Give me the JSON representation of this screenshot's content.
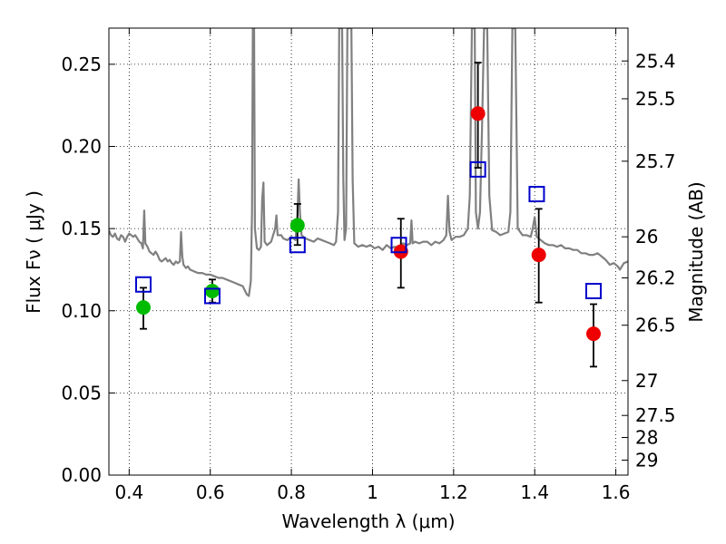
{
  "chart_data": {
    "type": "scatter",
    "title": "",
    "xlabel": "Wavelength  λ (μm)",
    "ylabel": "Flux  Fν  ( μJy )",
    "y2label": "Magnitude (AB)",
    "xlim": [
      0.35,
      1.63
    ],
    "ylim": [
      0.0,
      0.272
    ],
    "grid": true,
    "x_ticks": [
      0.4,
      0.6,
      0.8,
      1.0,
      1.2,
      1.4,
      1.6
    ],
    "x_tick_labels": [
      "0.4",
      "0.6",
      "0.8",
      "1",
      "1.2",
      "1.4",
      "1.6"
    ],
    "y_ticks": [
      0.0,
      0.05,
      0.1,
      0.15,
      0.2,
      0.25
    ],
    "y_tick_labels": [
      "0.00",
      "0.05",
      "0.10",
      "0.15",
      "0.20",
      "0.25"
    ],
    "y2_ticks": [
      {
        "label": "25.4",
        "flux": 0.252
      },
      {
        "label": "25.5",
        "flux": 0.229
      },
      {
        "label": "25.7",
        "flux": 0.191
      },
      {
        "label": "26",
        "flux": 0.145
      },
      {
        "label": "26.2",
        "flux": 0.12
      },
      {
        "label": "26.5",
        "flux": 0.0912
      },
      {
        "label": "27",
        "flux": 0.0575
      },
      {
        "label": "27.5",
        "flux": 0.0363
      },
      {
        "label": "28",
        "flux": 0.0229
      },
      {
        "label": "29",
        "flux": 0.0091
      }
    ],
    "series": [
      {
        "color": "#808080",
        "style": "line",
        "points": [
          [
            0.35,
            0.149
          ],
          [
            0.355,
            0.146
          ],
          [
            0.36,
            0.145
          ],
          [
            0.365,
            0.147
          ],
          [
            0.37,
            0.144
          ],
          [
            0.375,
            0.143
          ],
          [
            0.38,
            0.146
          ],
          [
            0.385,
            0.145
          ],
          [
            0.39,
            0.142
          ],
          [
            0.395,
            0.145
          ],
          [
            0.4,
            0.147
          ],
          [
            0.405,
            0.146
          ],
          [
            0.41,
            0.145
          ],
          [
            0.415,
            0.146
          ],
          [
            0.42,
            0.144
          ],
          [
            0.425,
            0.142
          ],
          [
            0.43,
            0.141
          ],
          [
            0.434,
            0.138
          ],
          [
            0.437,
            0.161
          ],
          [
            0.44,
            0.141
          ],
          [
            0.445,
            0.139
          ],
          [
            0.45,
            0.136
          ],
          [
            0.455,
            0.135
          ],
          [
            0.46,
            0.134
          ],
          [
            0.465,
            0.136
          ],
          [
            0.47,
            0.134
          ],
          [
            0.475,
            0.131
          ],
          [
            0.48,
            0.13
          ],
          [
            0.485,
            0.131
          ],
          [
            0.49,
            0.132
          ],
          [
            0.495,
            0.13
          ],
          [
            0.5,
            0.131
          ],
          [
            0.505,
            0.129
          ],
          [
            0.51,
            0.128
          ],
          [
            0.515,
            0.13
          ],
          [
            0.52,
            0.129
          ],
          [
            0.525,
            0.13
          ],
          [
            0.528,
            0.148
          ],
          [
            0.531,
            0.133
          ],
          [
            0.534,
            0.128
          ],
          [
            0.54,
            0.126
          ],
          [
            0.545,
            0.127
          ],
          [
            0.55,
            0.125
          ],
          [
            0.56,
            0.124
          ],
          [
            0.57,
            0.123
          ],
          [
            0.58,
            0.123
          ],
          [
            0.59,
            0.122
          ],
          [
            0.6,
            0.122
          ],
          [
            0.61,
            0.121
          ],
          [
            0.62,
            0.12
          ],
          [
            0.63,
            0.12
          ],
          [
            0.64,
            0.119
          ],
          [
            0.65,
            0.118
          ],
          [
            0.66,
            0.117
          ],
          [
            0.67,
            0.116
          ],
          [
            0.68,
            0.115
          ],
          [
            0.69,
            0.11
          ],
          [
            0.695,
            0.109
          ],
          [
            0.7,
            0.118
          ],
          [
            0.703,
            0.16
          ],
          [
            0.705,
            0.272
          ],
          [
            0.708,
            0.272
          ],
          [
            0.71,
            0.15
          ],
          [
            0.715,
            0.138
          ],
          [
            0.72,
            0.137
          ],
          [
            0.725,
            0.139
          ],
          [
            0.728,
            0.168
          ],
          [
            0.731,
            0.178
          ],
          [
            0.734,
            0.142
          ],
          [
            0.74,
            0.14
          ],
          [
            0.75,
            0.142
          ],
          [
            0.76,
            0.15
          ],
          [
            0.763,
            0.158
          ],
          [
            0.766,
            0.146
          ],
          [
            0.775,
            0.146
          ],
          [
            0.78,
            0.144
          ],
          [
            0.79,
            0.143
          ],
          [
            0.8,
            0.145
          ],
          [
            0.81,
            0.143
          ],
          [
            0.815,
            0.158
          ],
          [
            0.818,
            0.18
          ],
          [
            0.821,
            0.16
          ],
          [
            0.825,
            0.146
          ],
          [
            0.835,
            0.144
          ],
          [
            0.845,
            0.143
          ],
          [
            0.855,
            0.142
          ],
          [
            0.865,
            0.144
          ],
          [
            0.875,
            0.143
          ],
          [
            0.885,
            0.142
          ],
          [
            0.895,
            0.141
          ],
          [
            0.905,
            0.14
          ],
          [
            0.91,
            0.142
          ],
          [
            0.915,
            0.16
          ],
          [
            0.918,
            0.272
          ],
          [
            0.925,
            0.272
          ],
          [
            0.928,
            0.18
          ],
          [
            0.931,
            0.143
          ],
          [
            0.935,
            0.15
          ],
          [
            0.938,
            0.272
          ],
          [
            0.948,
            0.272
          ],
          [
            0.951,
            0.18
          ],
          [
            0.955,
            0.141
          ],
          [
            0.965,
            0.139
          ],
          [
            0.975,
            0.14
          ],
          [
            0.985,
            0.139
          ],
          [
            0.995,
            0.14
          ],
          [
            1.005,
            0.138
          ],
          [
            1.015,
            0.139
          ],
          [
            1.025,
            0.137
          ],
          [
            1.035,
            0.14
          ],
          [
            1.045,
            0.138
          ],
          [
            1.055,
            0.139
          ],
          [
            1.065,
            0.138
          ],
          [
            1.075,
            0.141
          ],
          [
            1.085,
            0.14
          ],
          [
            1.093,
            0.141
          ],
          [
            1.096,
            0.155
          ],
          [
            1.099,
            0.141
          ],
          [
            1.105,
            0.142
          ],
          [
            1.115,
            0.141
          ],
          [
            1.125,
            0.142
          ],
          [
            1.135,
            0.142
          ],
          [
            1.145,
            0.14
          ],
          [
            1.155,
            0.142
          ],
          [
            1.165,
            0.141
          ],
          [
            1.175,
            0.143
          ],
          [
            1.182,
            0.146
          ],
          [
            1.186,
            0.17
          ],
          [
            1.19,
            0.148
          ],
          [
            1.195,
            0.143
          ],
          [
            1.205,
            0.145
          ],
          [
            1.215,
            0.145
          ],
          [
            1.225,
            0.146
          ],
          [
            1.235,
            0.15
          ],
          [
            1.24,
            0.17
          ],
          [
            1.245,
            0.272
          ],
          [
            1.252,
            0.272
          ],
          [
            1.255,
            0.16
          ],
          [
            1.26,
            0.15
          ],
          [
            1.265,
            0.16
          ],
          [
            1.27,
            0.21
          ],
          [
            1.275,
            0.272
          ],
          [
            1.283,
            0.272
          ],
          [
            1.288,
            0.17
          ],
          [
            1.295,
            0.149
          ],
          [
            1.305,
            0.148
          ],
          [
            1.315,
            0.146
          ],
          [
            1.325,
            0.147
          ],
          [
            1.335,
            0.148
          ],
          [
            1.34,
            0.16
          ],
          [
            1.345,
            0.272
          ],
          [
            1.352,
            0.272
          ],
          [
            1.358,
            0.15
          ],
          [
            1.37,
            0.146
          ],
          [
            1.38,
            0.146
          ],
          [
            1.39,
            0.145
          ],
          [
            1.395,
            0.15
          ],
          [
            1.4,
            0.157
          ],
          [
            1.405,
            0.145
          ],
          [
            1.415,
            0.143
          ],
          [
            1.425,
            0.141
          ],
          [
            1.435,
            0.14
          ],
          [
            1.445,
            0.14
          ],
          [
            1.455,
            0.139
          ],
          [
            1.465,
            0.14
          ],
          [
            1.475,
            0.138
          ],
          [
            1.485,
            0.138
          ],
          [
            1.495,
            0.137
          ],
          [
            1.505,
            0.137
          ],
          [
            1.515,
            0.135
          ],
          [
            1.525,
            0.135
          ],
          [
            1.535,
            0.134
          ],
          [
            1.545,
            0.134
          ],
          [
            1.555,
            0.135
          ],
          [
            1.565,
            0.133
          ],
          [
            1.575,
            0.131
          ],
          [
            1.585,
            0.128
          ],
          [
            1.595,
            0.129
          ],
          [
            1.605,
            0.127
          ],
          [
            1.61,
            0.125
          ],
          [
            1.62,
            0.129
          ],
          [
            1.63,
            0.13
          ]
        ]
      },
      {
        "color": "#00bb00",
        "style": "marker-circle",
        "points": [
          {
            "x": 0.435,
            "y": 0.102,
            "yerr_low": 0.089,
            "yerr_high": 0.114
          },
          {
            "x": 0.605,
            "y": 0.112,
            "yerr_low": 0.105,
            "yerr_high": 0.119
          },
          {
            "x": 0.815,
            "y": 0.152,
            "yerr_low": 0.14,
            "yerr_high": 0.165
          }
        ]
      },
      {
        "color": "#ee0000",
        "style": "marker-circle",
        "points": [
          {
            "x": 1.07,
            "y": 0.136,
            "yerr_low": 0.114,
            "yerr_high": 0.156
          },
          {
            "x": 1.26,
            "y": 0.22,
            "yerr_low": 0.187,
            "yerr_high": 0.251
          },
          {
            "x": 1.41,
            "y": 0.134,
            "yerr_low": 0.105,
            "yerr_high": 0.162
          },
          {
            "x": 1.545,
            "y": 0.086,
            "yerr_low": 0.066,
            "yerr_high": 0.104
          }
        ]
      },
      {
        "color": "#0000cc",
        "style": "marker-square-open",
        "points": [
          {
            "x": 0.435,
            "y": 0.116
          },
          {
            "x": 0.605,
            "y": 0.109
          },
          {
            "x": 0.815,
            "y": 0.14
          },
          {
            "x": 1.065,
            "y": 0.14
          },
          {
            "x": 1.26,
            "y": 0.186
          },
          {
            "x": 1.405,
            "y": 0.171
          },
          {
            "x": 1.545,
            "y": 0.112
          }
        ]
      }
    ]
  }
}
